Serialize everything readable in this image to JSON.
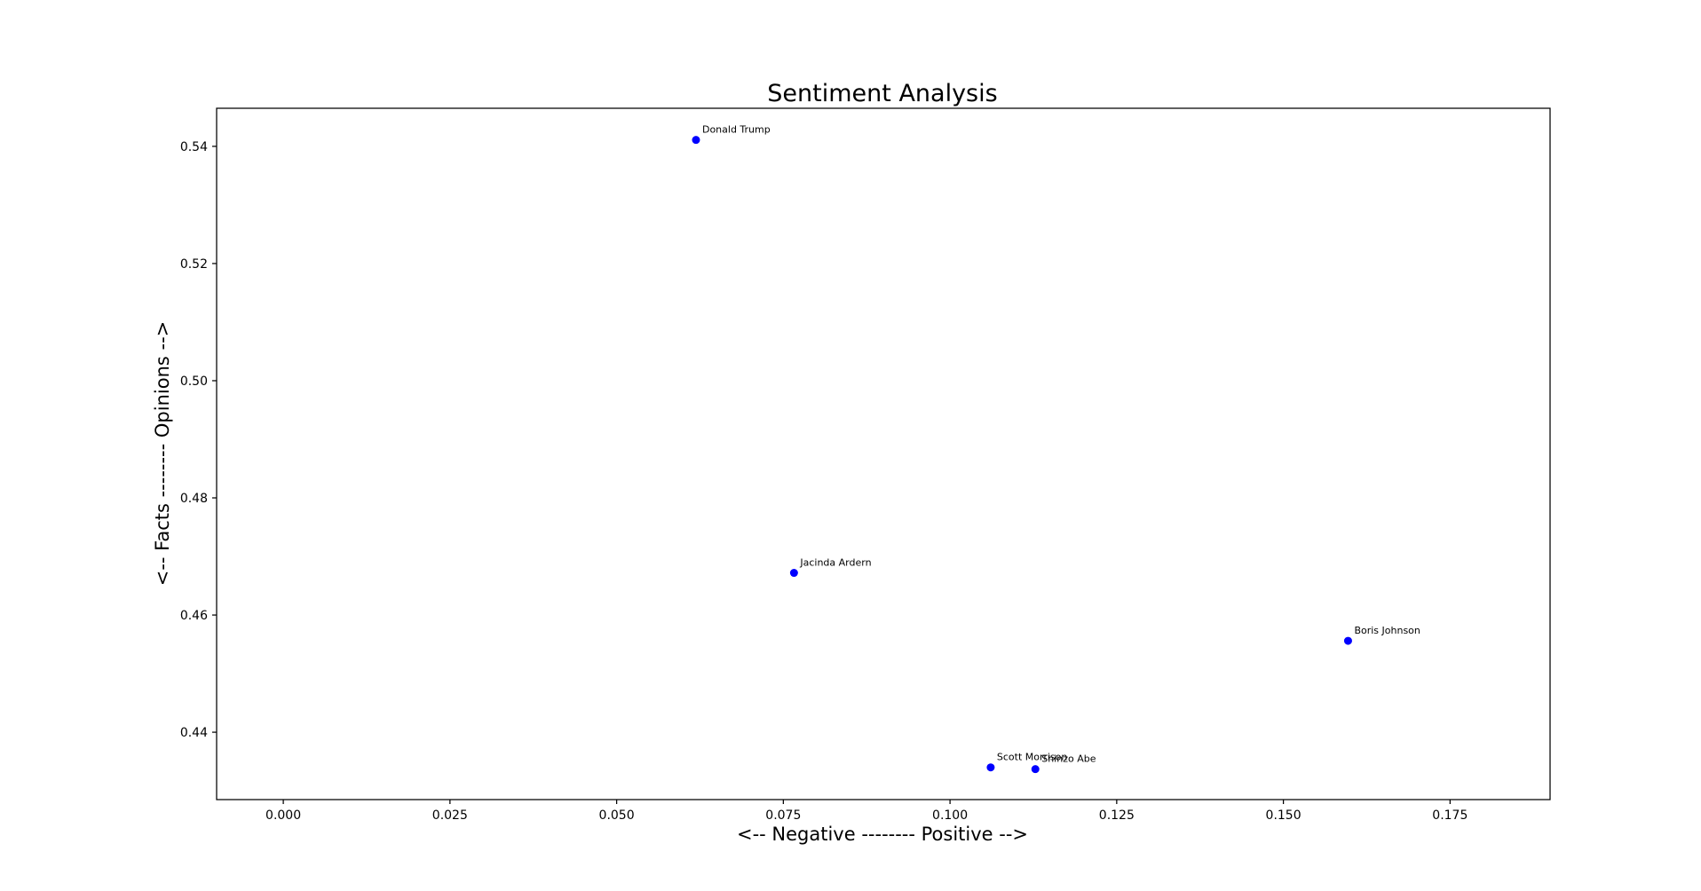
{
  "chart_data": {
    "type": "scatter",
    "title": "Sentiment Analysis",
    "xlabel": "<-- Negative -------- Positive -->",
    "ylabel": "<-- Facts -------- Opinions -->",
    "xlim": [
      -0.01,
      0.19
    ],
    "ylim": [
      0.4285,
      0.5465
    ],
    "x_ticks": [
      0.0,
      0.025,
      0.05,
      0.075,
      0.1,
      0.125,
      0.15,
      0.175
    ],
    "x_tick_labels": [
      "0.000",
      "0.025",
      "0.050",
      "0.075",
      "0.100",
      "0.125",
      "0.150",
      "0.175"
    ],
    "y_ticks": [
      0.44,
      0.46,
      0.48,
      0.5,
      0.52,
      0.54
    ],
    "y_tick_labels": [
      "0.44",
      "0.46",
      "0.48",
      "0.50",
      "0.52",
      "0.54"
    ],
    "grid": false,
    "marker_color": "#0000ff",
    "points": [
      {
        "label": "Donald Trump",
        "x": 0.0619,
        "y": 0.5411
      },
      {
        "label": "Jacinda Ardern",
        "x": 0.0766,
        "y": 0.4672
      },
      {
        "label": "Boris Johnson",
        "x": 0.1597,
        "y": 0.4556
      },
      {
        "label": "Scott Morrison",
        "x": 0.1061,
        "y": 0.434
      },
      {
        "label": "Shinzo Abe",
        "x": 0.1128,
        "y": 0.4337
      }
    ]
  }
}
